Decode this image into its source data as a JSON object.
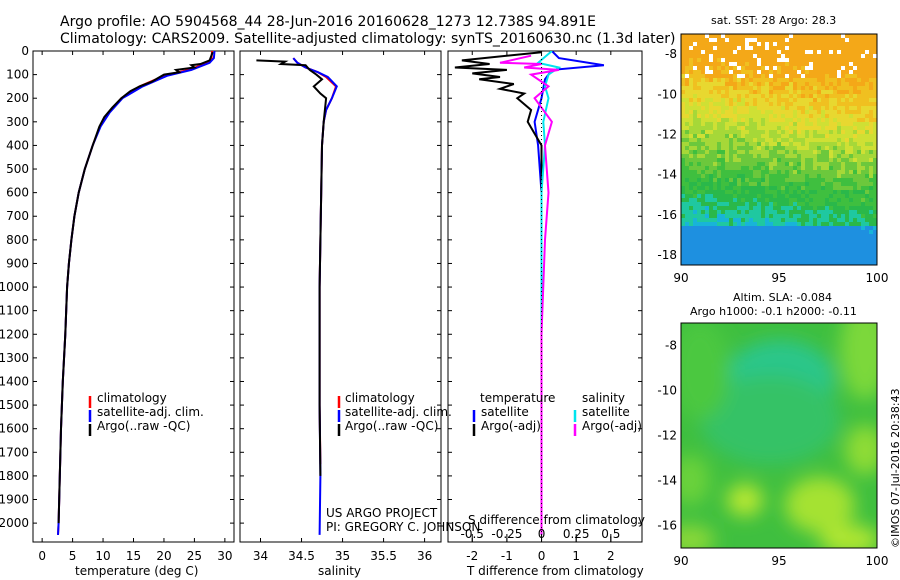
{
  "header": {
    "line1": "Argo profile: AO 5904568_44 28-Jun-2016 20160628_1273 12.738S 94.891E",
    "line2": "Climatology: CARS2009. Satellite-adjusted climatology: synTS_20160630.nc (1.3d later)"
  },
  "depth_ticks": [
    0,
    100,
    200,
    300,
    400,
    500,
    600,
    700,
    800,
    900,
    1000,
    1100,
    1200,
    1300,
    1400,
    1500,
    1600,
    1700,
    1800,
    1900,
    2000
  ],
  "colors": {
    "clim": "#ff0000",
    "sat": "#0000ff",
    "argo": "#000000",
    "sat_s": "#00e5ee",
    "argo_s": "#ff00ff"
  },
  "chart_data": [
    {
      "type": "line",
      "id": "temperature",
      "xlabel": "temperature (deg C)",
      "ylabel": "depth (dbar)",
      "xlim": [
        -1.5,
        31.5
      ],
      "ylim": [
        2080,
        0
      ],
      "x_ticks": [
        0,
        5,
        10,
        15,
        20,
        25,
        30
      ],
      "legend": [
        "climatology",
        "satellite-adj. clim.",
        "Argo(..raw -QC)"
      ],
      "series": [
        {
          "name": "climatology",
          "color": "clim",
          "points": [
            [
              27.9,
              0
            ],
            [
              27.8,
              30
            ],
            [
              27.2,
              50
            ],
            [
              24,
              80
            ],
            [
              20,
              105
            ],
            [
              16,
              150
            ],
            [
              13,
              200
            ],
            [
              11,
              260
            ],
            [
              9.5,
              320
            ],
            [
              8.3,
              400
            ],
            [
              7,
              500
            ],
            [
              6,
              600
            ],
            [
              5.3,
              700
            ],
            [
              4.8,
              800
            ],
            [
              4.4,
              900
            ],
            [
              4.1,
              1000
            ],
            [
              3.8,
              1200
            ],
            [
              3.4,
              1400
            ],
            [
              3.1,
              1600
            ],
            [
              2.9,
              1800
            ],
            [
              2.7,
              2000
            ],
            [
              2.6,
              2050
            ]
          ]
        },
        {
          "name": "satellite-adj. clim.",
          "color": "sat",
          "points": [
            [
              28.3,
              0
            ],
            [
              28.2,
              30
            ],
            [
              27.5,
              50
            ],
            [
              24.5,
              80
            ],
            [
              20.5,
              105
            ],
            [
              16.5,
              150
            ],
            [
              13.2,
              200
            ],
            [
              11.1,
              260
            ],
            [
              9.6,
              320
            ],
            [
              8.3,
              400
            ],
            [
              7,
              500
            ],
            [
              6,
              600
            ],
            [
              5.3,
              700
            ],
            [
              4.8,
              800
            ],
            [
              4.4,
              900
            ],
            [
              4.1,
              1000
            ],
            [
              3.8,
              1200
            ],
            [
              3.4,
              1400
            ],
            [
              3.1,
              1600
            ],
            [
              2.9,
              1800
            ],
            [
              2.7,
              2000
            ],
            [
              2.6,
              2050
            ]
          ]
        },
        {
          "name": "Argo(..raw -QC)",
          "color": "argo",
          "points": [
            [
              28,
              5
            ],
            [
              27.5,
              40
            ],
            [
              26,
              55
            ],
            [
              24.5,
              60
            ],
            [
              25,
              70
            ],
            [
              22,
              80
            ],
            [
              22.5,
              90
            ],
            [
              20,
              100
            ],
            [
              19,
              115
            ],
            [
              18,
              130
            ],
            [
              16,
              150
            ],
            [
              14.5,
              170
            ],
            [
              13,
              200
            ],
            [
              11.5,
              240
            ],
            [
              10.2,
              280
            ],
            [
              9.4,
              320
            ],
            [
              8.3,
              400
            ],
            [
              7,
              500
            ],
            [
              6,
              600
            ],
            [
              5.3,
              700
            ],
            [
              4.8,
              800
            ],
            [
              4.4,
              900
            ],
            [
              4.1,
              1000
            ],
            [
              3.8,
              1200
            ],
            [
              3.4,
              1400
            ],
            [
              3.1,
              1600
            ],
            [
              2.9,
              1800
            ],
            [
              2.7,
              2000
            ]
          ]
        }
      ]
    },
    {
      "type": "line",
      "id": "salinity",
      "xlabel": "salinity",
      "xlim": [
        33.75,
        36.2
      ],
      "ylim": [
        2080,
        0
      ],
      "x_ticks": [
        34,
        34.5,
        35,
        35.5,
        36
      ],
      "legend": [
        "climatology",
        "satellite-adj. clim.",
        "Argo(..raw -QC)"
      ],
      "annotations": [
        "US ARGO PROJECT",
        "PI: GREGORY C. JOHNSON"
      ],
      "series": [
        {
          "name": "climatology",
          "color": "clim",
          "points": [
            [
              34.4,
              30
            ],
            [
              34.45,
              50
            ],
            [
              34.55,
              70
            ],
            [
              34.7,
              90
            ],
            [
              34.8,
              110
            ],
            [
              34.92,
              150
            ],
            [
              34.87,
              200
            ],
            [
              34.8,
              250
            ],
            [
              34.77,
              300
            ],
            [
              34.75,
              400
            ],
            [
              34.74,
              600
            ],
            [
              34.73,
              800
            ],
            [
              34.72,
              1000
            ],
            [
              34.72,
              1500
            ],
            [
              34.73,
              1750
            ]
          ]
        },
        {
          "name": "satellite-adj. clim.",
          "color": "sat",
          "points": [
            [
              34.4,
              30
            ],
            [
              34.45,
              50
            ],
            [
              34.55,
              70
            ],
            [
              34.7,
              90
            ],
            [
              34.82,
              110
            ],
            [
              34.93,
              150
            ],
            [
              34.87,
              200
            ],
            [
              34.8,
              250
            ],
            [
              34.77,
              300
            ],
            [
              34.75,
              400
            ],
            [
              34.74,
              600
            ],
            [
              34.73,
              800
            ],
            [
              34.72,
              1000
            ],
            [
              34.72,
              1500
            ],
            [
              34.73,
              1800
            ],
            [
              34.72,
              2050
            ]
          ]
        },
        {
          "name": "Argo(..raw -QC)",
          "color": "argo",
          "points": [
            [
              33.95,
              40
            ],
            [
              34.3,
              45
            ],
            [
              34.25,
              55
            ],
            [
              34.55,
              60
            ],
            [
              34.6,
              80
            ],
            [
              34.68,
              100
            ],
            [
              34.75,
              120
            ],
            [
              34.65,
              150
            ],
            [
              34.73,
              180
            ],
            [
              34.8,
              200
            ],
            [
              34.77,
              300
            ],
            [
              34.75,
              400
            ],
            [
              34.74,
              600
            ],
            [
              34.73,
              800
            ],
            [
              34.72,
              1000
            ],
            [
              34.72,
              1500
            ],
            [
              34.73,
              1800
            ]
          ]
        }
      ]
    },
    {
      "type": "line",
      "id": "difference",
      "xlabel": "T difference from climatology",
      "x2label": "S difference from climatology",
      "xlim": [
        -2.7,
        2.9
      ],
      "ylim": [
        2080,
        0
      ],
      "x_ticks": [
        -2,
        -1,
        0,
        1,
        2
      ],
      "x2_ticks": [
        "-0.5",
        "-0.25",
        "0",
        "0.25",
        "0.5"
      ],
      "legend_headers": [
        "temperature",
        "salinity"
      ],
      "legend": [
        "satellite",
        "Argo(-adj)",
        "satellite",
        "Argo(-adj)"
      ],
      "series": [
        {
          "name": "temperature satellite",
          "color": "sat",
          "points": [
            [
              0.3,
              0
            ],
            [
              0.5,
              30
            ],
            [
              1.8,
              60
            ],
            [
              0.3,
              80
            ],
            [
              0.1,
              120
            ],
            [
              0,
              200
            ],
            [
              -0.2,
              300
            ],
            [
              -0.1,
              400
            ],
            [
              0,
              600
            ],
            [
              0,
              1000
            ],
            [
              0,
              1500
            ],
            [
              0,
              2050
            ]
          ]
        },
        {
          "name": "temperature Argo(-adj)",
          "color": "argo",
          "points": [
            [
              0,
              5
            ],
            [
              -2.3,
              40
            ],
            [
              -1.5,
              55
            ],
            [
              -2.5,
              70
            ],
            [
              -1,
              80
            ],
            [
              -2,
              95
            ],
            [
              -1.2,
              110
            ],
            [
              -1.8,
              120
            ],
            [
              -0.8,
              140
            ],
            [
              -1.2,
              160
            ],
            [
              -0.5,
              180
            ],
            [
              -0.7,
              200
            ],
            [
              -0.3,
              250
            ],
            [
              -0.4,
              300
            ],
            [
              -0.2,
              350
            ],
            [
              0,
              400
            ],
            [
              0,
              1000
            ],
            [
              0,
              2050
            ]
          ]
        },
        {
          "name": "salinity satellite",
          "color": "sat_s",
          "points": [
            [
              0.3,
              0
            ],
            [
              -0.1,
              50
            ],
            [
              0.5,
              70
            ],
            [
              0.2,
              100
            ],
            [
              0.1,
              150
            ],
            [
              0.2,
              200
            ],
            [
              0.05,
              300
            ],
            [
              0.1,
              400
            ],
            [
              0,
              600
            ],
            [
              0,
              1000
            ],
            [
              0,
              2050
            ]
          ]
        },
        {
          "name": "salinity Argo(-adj)",
          "color": "argo_s",
          "points": [
            [
              -0.3,
              20
            ],
            [
              -1.2,
              50
            ],
            [
              0,
              55
            ],
            [
              -0.5,
              70
            ],
            [
              0.5,
              80
            ],
            [
              -0.3,
              100
            ],
            [
              0.2,
              150
            ],
            [
              -0.2,
              200
            ],
            [
              0.3,
              300
            ],
            [
              0.1,
              400
            ],
            [
              0.2,
              600
            ],
            [
              0.1,
              800
            ],
            [
              0,
              1200
            ],
            [
              0,
              2050
            ]
          ]
        }
      ]
    },
    {
      "type": "heatmap",
      "id": "sst_map",
      "title": "sat. SST: 28 Argo: 28.3",
      "xlim": [
        90,
        100
      ],
      "ylim": [
        -18.5,
        -7
      ],
      "x_ticks": [
        90,
        95,
        100
      ],
      "y_ticks": [
        -8,
        -10,
        -12,
        -14,
        -16,
        -18
      ],
      "argo_position": [
        94.891,
        -12.738
      ]
    },
    {
      "type": "heatmap",
      "id": "sla_map",
      "title_line1": "Altim. SLA: -0.084",
      "title_line2": "Argo h1000: -0.1 h2000: -0.11",
      "xlim": [
        90,
        100
      ],
      "ylim": [
        -17,
        -7
      ],
      "x_ticks": [
        90,
        95,
        100
      ],
      "y_ticks": [
        -8,
        -10,
        -12,
        -14,
        -16
      ],
      "argo_position": [
        94.891,
        -12.738
      ],
      "watermark": "©IMOS 07-Jul-2016 20:38:43"
    }
  ]
}
